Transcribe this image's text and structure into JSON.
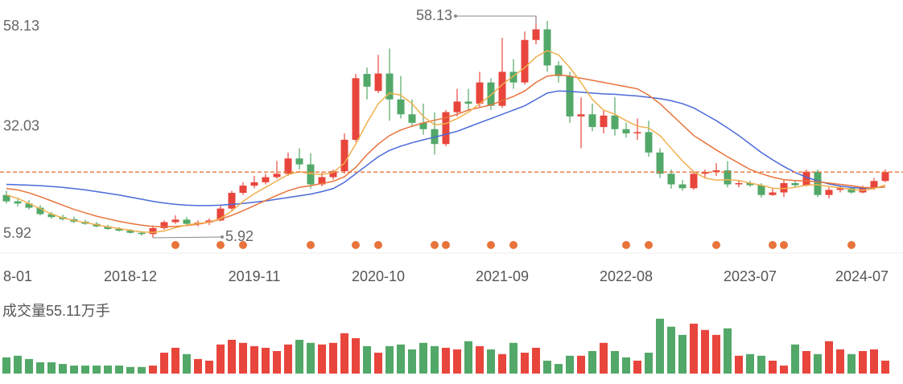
{
  "chart_data": {
    "type": "candlestick",
    "categories": [
      "8-01",
      null,
      null,
      null,
      null,
      null,
      null,
      null,
      null,
      null,
      null,
      "2018-12",
      null,
      null,
      null,
      null,
      null,
      null,
      null,
      null,
      null,
      null,
      "2019-11",
      null,
      null,
      null,
      null,
      null,
      null,
      null,
      null,
      null,
      null,
      "2020-10",
      null,
      null,
      null,
      null,
      null,
      null,
      null,
      null,
      null,
      null,
      "2021-09",
      null,
      null,
      null,
      null,
      null,
      null,
      null,
      null,
      null,
      null,
      "2022-08",
      null,
      null,
      null,
      null,
      null,
      null,
      null,
      null,
      null,
      null,
      "2023-07",
      null,
      null,
      null,
      null,
      null,
      null,
      null,
      null,
      null,
      null,
      null,
      "2024-07"
    ],
    "ohlc": [
      [
        16,
        17,
        14,
        14.5
      ],
      [
        14.5,
        15.2,
        13.3,
        14
      ],
      [
        14,
        14.8,
        12.6,
        13
      ],
      [
        13,
        13.6,
        11.2,
        11.5
      ],
      [
        11.5,
        12,
        10.4,
        10.8
      ],
      [
        10.8,
        11.4,
        10,
        10.3
      ],
      [
        10.3,
        10.9,
        9.4,
        9.7
      ],
      [
        9.7,
        10.2,
        9,
        9.2
      ],
      [
        9.2,
        9.6,
        8.4,
        8.6
      ],
      [
        8.6,
        9,
        7.8,
        8
      ],
      [
        8,
        8.4,
        7.4,
        7.6
      ],
      [
        7.6,
        8,
        6.9,
        7.1
      ],
      [
        7.1,
        7.5,
        6.4,
        6.8
      ],
      [
        6.8,
        8.8,
        5.92,
        8.2
      ],
      [
        8.2,
        10,
        7.8,
        9.6
      ],
      [
        9.6,
        11.2,
        9.2,
        10.2
      ],
      [
        10.2,
        10.8,
        8.8,
        9.2
      ],
      [
        9.2,
        10,
        8.6,
        9.5
      ],
      [
        9.5,
        10.5,
        8.9,
        10
      ],
      [
        10,
        13.5,
        9.8,
        12.8
      ],
      [
        12.8,
        17,
        12.4,
        16.5
      ],
      [
        16.5,
        19,
        16,
        18.2
      ],
      [
        18.2,
        20.5,
        17.6,
        19
      ],
      [
        19,
        21,
        18.5,
        20.2
      ],
      [
        20.2,
        24,
        19.8,
        21
      ],
      [
        21,
        26,
        20.5,
        24.6
      ],
      [
        24.6,
        27,
        22,
        23.2
      ],
      [
        23.2,
        25.8,
        17.5,
        18.5
      ],
      [
        18.5,
        21.4,
        18,
        20.2
      ],
      [
        20.2,
        22,
        19.6,
        21.6
      ],
      [
        21.6,
        30.5,
        21,
        29
      ],
      [
        29,
        44.5,
        28.5,
        43.5
      ],
      [
        44.5,
        46,
        38.5,
        41.5
      ],
      [
        40.5,
        49,
        40,
        44.6
      ],
      [
        44.6,
        50.5,
        33.5,
        38.5
      ],
      [
        38.5,
        44,
        34,
        35
      ],
      [
        35,
        38.5,
        32,
        33
      ],
      [
        33,
        37.5,
        30.2,
        31.5
      ],
      [
        31.5,
        35.5,
        25.5,
        28
      ],
      [
        28,
        36,
        27.5,
        35.5
      ],
      [
        35.5,
        41,
        34.5,
        38
      ],
      [
        38,
        41,
        36,
        37.5
      ],
      [
        37.5,
        45,
        36.5,
        42.5
      ],
      [
        42.5,
        43.5,
        36,
        37
      ],
      [
        37,
        53,
        36.5,
        45
      ],
      [
        45,
        48,
        41,
        42.5
      ],
      [
        42.5,
        54.5,
        42,
        52.5
      ],
      [
        52.5,
        58.13,
        51.5,
        55
      ],
      [
        55,
        57,
        45,
        46.5
      ],
      [
        46.5,
        47.5,
        42.5,
        44
      ],
      [
        44,
        45,
        33,
        34.5
      ],
      [
        34.5,
        39,
        27,
        35
      ],
      [
        35,
        37.5,
        31,
        32
      ],
      [
        32,
        36,
        30.5,
        34.7
      ],
      [
        34.7,
        39,
        30,
        31.5
      ],
      [
        31.5,
        33,
        29.5,
        30.5
      ],
      [
        30.5,
        34,
        29,
        30.8
      ],
      [
        30.8,
        33.5,
        25,
        26
      ],
      [
        26,
        27,
        20,
        21
      ],
      [
        21,
        22,
        17.5,
        18.5
      ],
      [
        18.5,
        19.5,
        17,
        17.6
      ],
      [
        17.6,
        21.5,
        17.2,
        21
      ],
      [
        21,
        22,
        20,
        21.4
      ],
      [
        21.4,
        23.5,
        20.5,
        21.8
      ],
      [
        21.8,
        24,
        17.8,
        18.5
      ],
      [
        18.5,
        19.5,
        17.8,
        18.8
      ],
      [
        18.8,
        19.3,
        17.9,
        18.3
      ],
      [
        18.3,
        18.8,
        15.4,
        16
      ],
      [
        16,
        17.5,
        15.8,
        16.6
      ],
      [
        16.6,
        19.5,
        15.5,
        18.8
      ],
      [
        18.8,
        19.5,
        17.8,
        18.3
      ],
      [
        18.3,
        22,
        18,
        21.5
      ],
      [
        21.5,
        22,
        15.5,
        16
      ],
      [
        16,
        17.8,
        15.2,
        17.2
      ],
      [
        17.2,
        18,
        16.6,
        17.6
      ],
      [
        17.6,
        17.9,
        16.3,
        16.6
      ],
      [
        16.6,
        18.2,
        16.4,
        17.6
      ],
      [
        17.6,
        20,
        17.2,
        19.3
      ],
      [
        19.3,
        22,
        19,
        21.4
      ]
    ],
    "up_color": "#e8453c",
    "down_color": "#52a868",
    "ma_lines": [
      {
        "color": "#4a6ad8",
        "values": [
          18.5,
          18.4,
          18.3,
          18.2,
          18,
          17.8,
          17.5,
          17.2,
          16.8,
          16.4,
          16,
          15.5,
          15,
          14.5,
          14.1,
          13.8,
          13.6,
          13.5,
          13.5,
          13.6,
          13.8,
          14,
          14.3,
          14.6,
          15,
          15.4,
          15.8,
          16.2,
          16.8,
          17.5,
          19,
          21,
          23,
          25,
          26.5,
          27.5,
          28.3,
          29,
          29.6,
          30.3,
          31,
          32,
          33,
          34,
          35,
          36,
          37,
          38.5,
          40,
          40.5,
          40.4,
          40.2,
          40,
          39.8,
          39.7,
          39.5,
          39.3,
          39,
          38.7,
          38.2,
          37.5,
          36.5,
          35,
          33.5,
          31.8,
          30,
          28,
          26,
          24.3,
          22.7,
          21.3,
          20.2,
          19.3,
          18.6,
          18.1,
          17.8,
          17.6,
          17.7,
          17.9
        ]
      },
      {
        "color": "#e8743b",
        "values": [
          17.5,
          17.2,
          16.5,
          15.6,
          14.6,
          13.6,
          12.6,
          11.8,
          11,
          10.4,
          9.8,
          9.3,
          8.9,
          8.6,
          8.5,
          8.6,
          8.8,
          9.1,
          9.6,
          10.3,
          11.2,
          12.3,
          13.5,
          14.7,
          15.9,
          17,
          17.8,
          18.2,
          18.7,
          19.2,
          20.3,
          22.5,
          25.5,
          28,
          30,
          31.3,
          32.2,
          33,
          33.6,
          34.2,
          35,
          36,
          36.6,
          37.2,
          38.2,
          39.2,
          40.5,
          42.5,
          44,
          44.3,
          44,
          43.5,
          43,
          42.5,
          42,
          41.5,
          41,
          39.5,
          37.5,
          35,
          32.5,
          30,
          28.3,
          26.6,
          25,
          23.5,
          22,
          21,
          20.2,
          19.6,
          19.4,
          19.3,
          19.1,
          18.8,
          18.5,
          18.2,
          17.8,
          17.7,
          17.9
        ]
      },
      {
        "color": "#f0b04e",
        "values": [
          16,
          15.2,
          14,
          12.8,
          11.5,
          10.6,
          10,
          9.5,
          9,
          8.5,
          8.1,
          7.7,
          7.3,
          7.2,
          7.5,
          8.3,
          8.9,
          9.3,
          9.6,
          10.5,
          12.2,
          14.5,
          16.3,
          17.8,
          19.3,
          20.8,
          21.5,
          21,
          20.8,
          21.3,
          23.5,
          28,
          33,
          37.5,
          40,
          39.5,
          37.5,
          34.5,
          32.5,
          32.8,
          34,
          35.5,
          37.5,
          39.5,
          42,
          44,
          46,
          48.5,
          50,
          49,
          46,
          42.5,
          38.5,
          36,
          35,
          33.5,
          32.2,
          31.8,
          30,
          27,
          24,
          21.5,
          20,
          19.5,
          19.6,
          19.4,
          18.8,
          18.3,
          17.6,
          17.5,
          17.8,
          18.3,
          18.4,
          18,
          17.7,
          17.3,
          17.1,
          17.5,
          18.4
        ]
      }
    ],
    "ylim": [
      5.92,
      58.13
    ],
    "yticks": [
      5.92,
      32.03,
      58.13
    ],
    "last_line_color": "#e8743b",
    "signals": [
      15,
      19,
      21,
      27,
      31,
      33,
      38,
      39,
      43,
      45,
      55,
      57,
      63,
      68,
      69,
      75
    ],
    "signal_color": "#e8743b",
    "volume_title": "成交量55.11万手",
    "volume_lim": [
      0,
      240
    ],
    "volumes": [
      69,
      76,
      62,
      48,
      48,
      41,
      34,
      34,
      34,
      34,
      34,
      28,
      28,
      34,
      89,
      110,
      83,
      62,
      55,
      124,
      144,
      131,
      117,
      110,
      96,
      124,
      144,
      131,
      124,
      131,
      172,
      151,
      117,
      89,
      117,
      124,
      103,
      131,
      117,
      110,
      103,
      138,
      117,
      103,
      83,
      131,
      89,
      110,
      55,
      41,
      76,
      76,
      96,
      131,
      96,
      69,
      55,
      89,
      234,
      200,
      165,
      213,
      186,
      165,
      193,
      76,
      83,
      76,
      55,
      34,
      124,
      96,
      83,
      138,
      103,
      83,
      96,
      103,
      55.11
    ]
  }
}
